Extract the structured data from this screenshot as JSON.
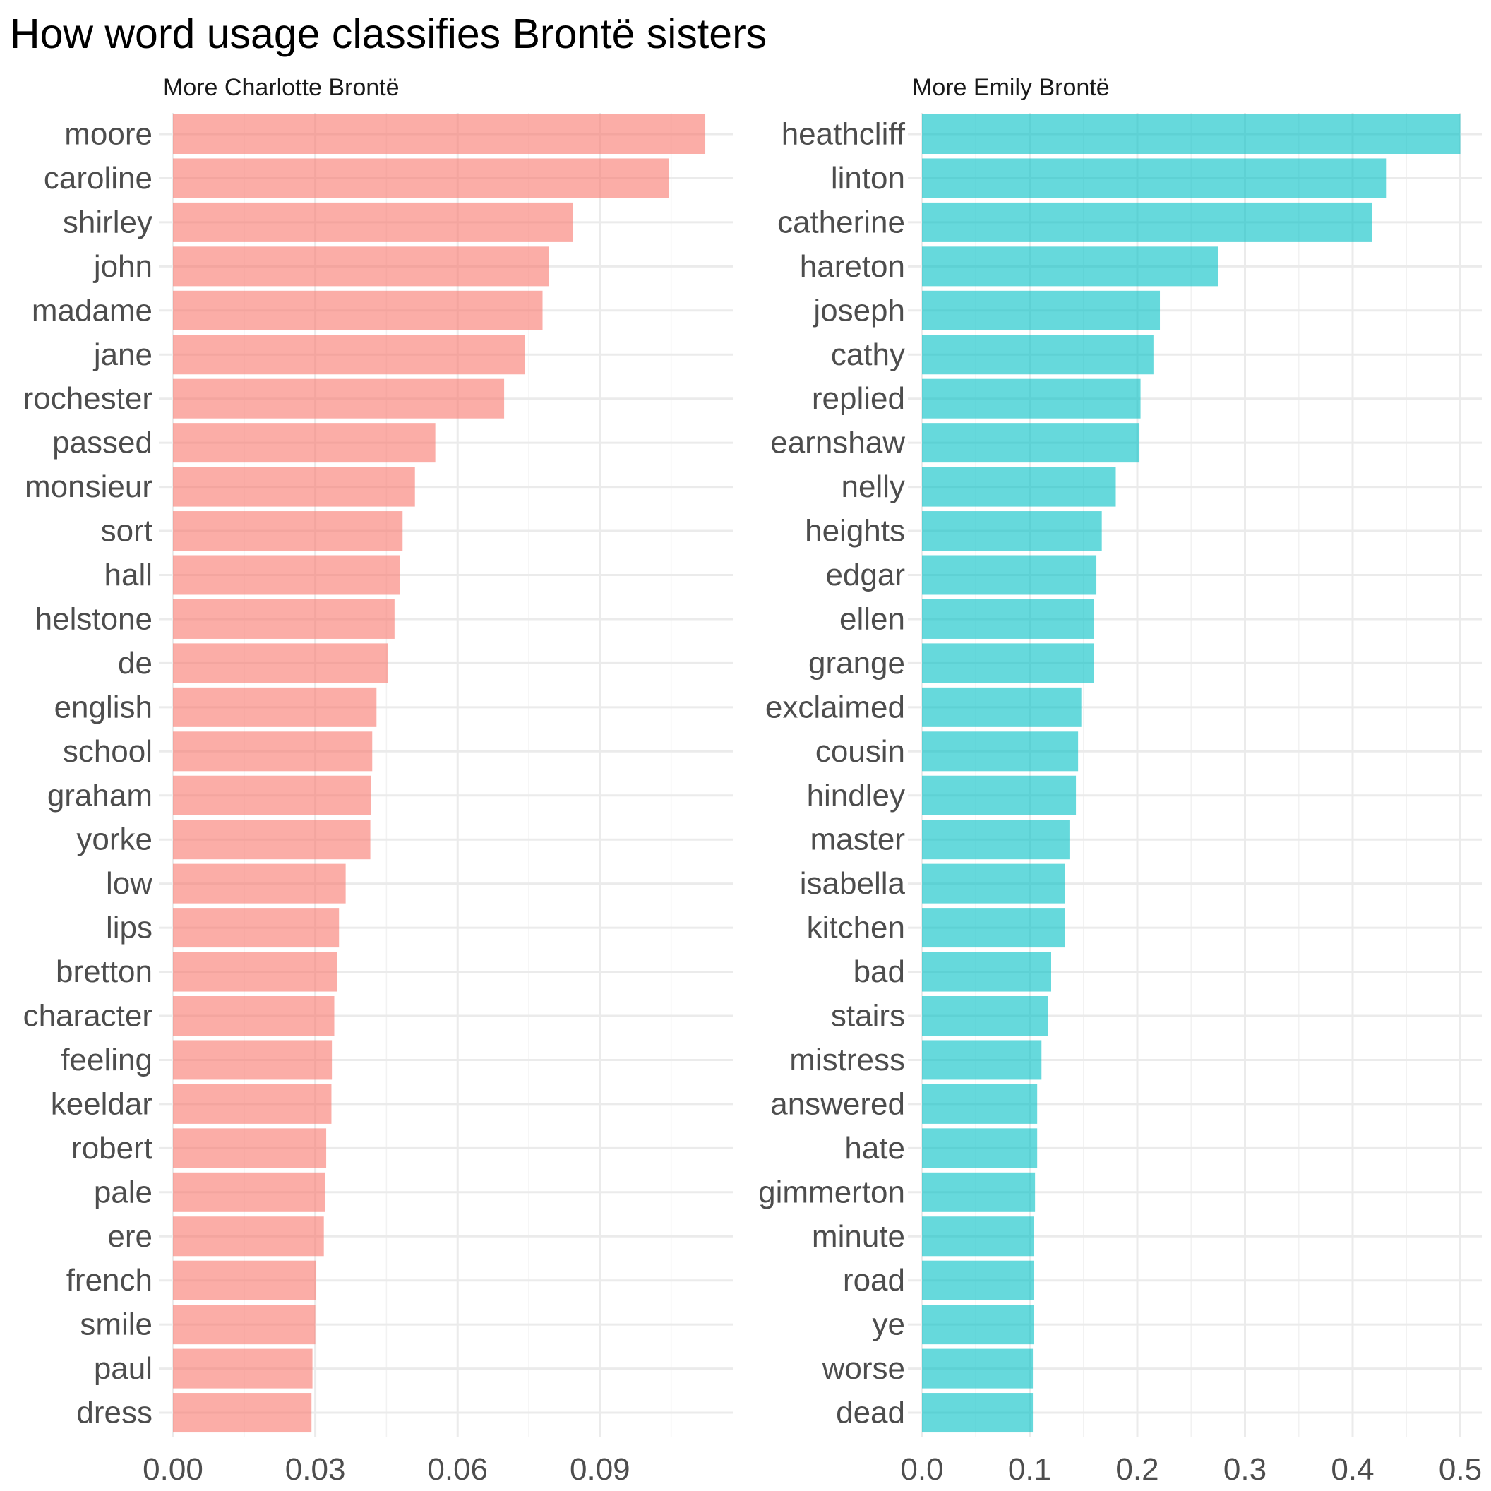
{
  "title": "How word usage classifies Brontë sisters",
  "chart_data": [
    {
      "type": "bar",
      "orientation": "horizontal",
      "facet_label": "More Charlotte Brontë",
      "color": "#F8766D",
      "xlim": [
        0,
        0.118
      ],
      "ticks": [
        0,
        0.03,
        0.06,
        0.09
      ],
      "tick_labels": [
        "0.00",
        "0.03",
        "0.06",
        "0.09"
      ],
      "categories": [
        "moore",
        "caroline",
        "shirley",
        "john",
        "madame",
        "jane",
        "rochester",
        "passed",
        "monsieur",
        "sort",
        "hall",
        "helstone",
        "de",
        "english",
        "school",
        "graham",
        "yorke",
        "low",
        "lips",
        "bretton",
        "character",
        "feeling",
        "keeldar",
        "robert",
        "pale",
        "ere",
        "french",
        "smile",
        "paul",
        "dress"
      ],
      "values": [
        0.1122,
        0.1045,
        0.0843,
        0.0793,
        0.0779,
        0.0742,
        0.0698,
        0.0553,
        0.051,
        0.0484,
        0.0479,
        0.0467,
        0.0453,
        0.0429,
        0.042,
        0.0418,
        0.0416,
        0.0364,
        0.035,
        0.0346,
        0.034,
        0.0335,
        0.0334,
        0.0323,
        0.0321,
        0.0318,
        0.0302,
        0.03,
        0.0294,
        0.0292
      ]
    },
    {
      "type": "bar",
      "orientation": "horizontal",
      "facet_label": "More Emily Brontë",
      "color": "#00BFC4",
      "xlim": [
        0,
        0.52
      ],
      "ticks": [
        0,
        0.1,
        0.2,
        0.3,
        0.4,
        0.5
      ],
      "tick_labels": [
        "0.0",
        "0.1",
        "0.2",
        "0.3",
        "0.4",
        "0.5"
      ],
      "categories": [
        "heathcliff",
        "linton",
        "catherine",
        "hareton",
        "joseph",
        "cathy",
        "replied",
        "earnshaw",
        "nelly",
        "heights",
        "edgar",
        "ellen",
        "grange",
        "exclaimed",
        "cousin",
        "hindley",
        "master",
        "isabella",
        "kitchen",
        "bad",
        "stairs",
        "mistress",
        "answered",
        "hate",
        "gimmerton",
        "minute",
        "road",
        "ye",
        "worse",
        "dead"
      ],
      "values": [
        0.5,
        0.431,
        0.418,
        0.275,
        0.221,
        0.215,
        0.203,
        0.202,
        0.18,
        0.167,
        0.162,
        0.16,
        0.16,
        0.148,
        0.145,
        0.143,
        0.137,
        0.133,
        0.133,
        0.12,
        0.117,
        0.111,
        0.107,
        0.107,
        0.105,
        0.104,
        0.104,
        0.104,
        0.103,
        0.103
      ]
    }
  ]
}
